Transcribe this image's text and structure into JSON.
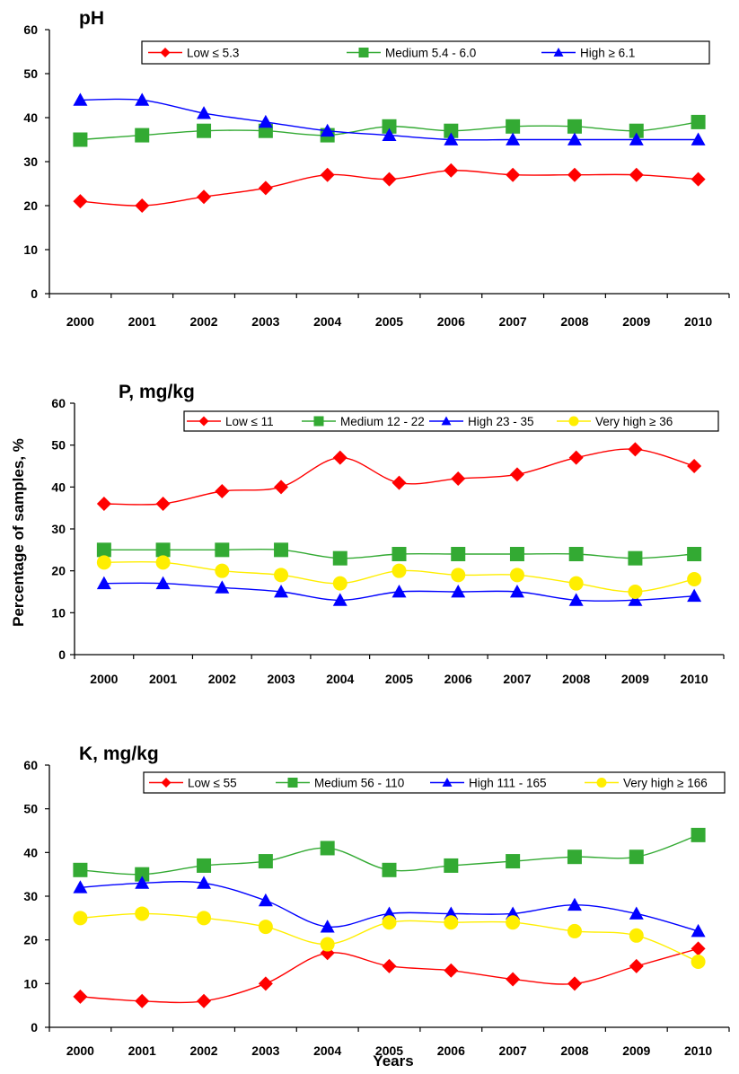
{
  "ylabel_shared": "Percentage of samples, %",
  "xlabel_shared": "Years",
  "chart_data": [
    {
      "type": "line",
      "title": "pH",
      "categories": [
        "2000",
        "2001",
        "2002",
        "2003",
        "2004",
        "2005",
        "2006",
        "2007",
        "2008",
        "2009",
        "2010"
      ],
      "ylim": [
        0,
        60
      ],
      "yticks": [
        "0",
        "10",
        "20",
        "30",
        "40",
        "50",
        "60"
      ],
      "legend": "top",
      "series": [
        {
          "name": "Low ≤ 5.3",
          "color": "#ff0000",
          "marker": "diamond",
          "values": [
            21,
            20,
            22,
            24,
            27,
            26,
            28,
            27,
            27,
            27,
            26
          ]
        },
        {
          "name": "Medium 5.4 - 6.0",
          "color": "#33aa33",
          "marker": "square",
          "values": [
            35,
            36,
            37,
            37,
            36,
            38,
            37,
            38,
            38,
            37,
            39
          ]
        },
        {
          "name": "High ≥ 6.1",
          "color": "#0000ff",
          "marker": "triangle",
          "values": [
            44,
            44,
            41,
            39,
            37,
            36,
            35,
            35,
            35,
            35,
            35
          ]
        }
      ]
    },
    {
      "type": "line",
      "title": "P, mg/kg",
      "categories": [
        "2000",
        "2001",
        "2002",
        "2003",
        "2004",
        "2005",
        "2006",
        "2007",
        "2008",
        "2009",
        "2010"
      ],
      "ylim": [
        0,
        60
      ],
      "yticks": [
        "0",
        "10",
        "20",
        "30",
        "40",
        "50",
        "60"
      ],
      "legend": "top",
      "series": [
        {
          "name": "Low ≤ 11",
          "color": "#ff0000",
          "marker": "diamond",
          "values": [
            36,
            36,
            39,
            40,
            47,
            41,
            42,
            43,
            47,
            49,
            45
          ]
        },
        {
          "name": "Medium 12 - 22",
          "color": "#33aa33",
          "marker": "square",
          "values": [
            25,
            25,
            25,
            25,
            23,
            24,
            24,
            24,
            24,
            23,
            24
          ]
        },
        {
          "name": "High 23 - 35",
          "color": "#0000ff",
          "marker": "triangle",
          "values": [
            17,
            17,
            16,
            15,
            13,
            15,
            15,
            15,
            13,
            13,
            14
          ]
        },
        {
          "name": "Very high ≥ 36",
          "color": "#ffee00",
          "marker": "circle",
          "values": [
            22,
            22,
            20,
            19,
            17,
            20,
            19,
            19,
            17,
            15,
            18
          ]
        }
      ]
    },
    {
      "type": "line",
      "title": "K, mg/kg",
      "categories": [
        "2000",
        "2001",
        "2002",
        "2003",
        "2004",
        "2005",
        "2006",
        "2007",
        "2008",
        "2009",
        "2010"
      ],
      "ylim": [
        0,
        60
      ],
      "yticks": [
        "0",
        "10",
        "20",
        "30",
        "40",
        "50",
        "60"
      ],
      "legend": "top",
      "series": [
        {
          "name": "Low ≤ 55",
          "color": "#ff0000",
          "marker": "diamond",
          "values": [
            7,
            6,
            6,
            10,
            17,
            14,
            13,
            11,
            10,
            14,
            18
          ]
        },
        {
          "name": "Medium 56 - 110",
          "color": "#33aa33",
          "marker": "square",
          "values": [
            36,
            35,
            37,
            38,
            41,
            36,
            37,
            38,
            39,
            39,
            44
          ]
        },
        {
          "name": "High 111 - 165",
          "color": "#0000ff",
          "marker": "triangle",
          "values": [
            32,
            33,
            33,
            29,
            23,
            26,
            26,
            26,
            28,
            26,
            22
          ]
        },
        {
          "name": "Very high ≥ 166",
          "color": "#ffee00",
          "marker": "circle",
          "values": [
            25,
            26,
            25,
            23,
            19,
            24,
            24,
            24,
            22,
            21,
            15
          ]
        }
      ]
    }
  ]
}
